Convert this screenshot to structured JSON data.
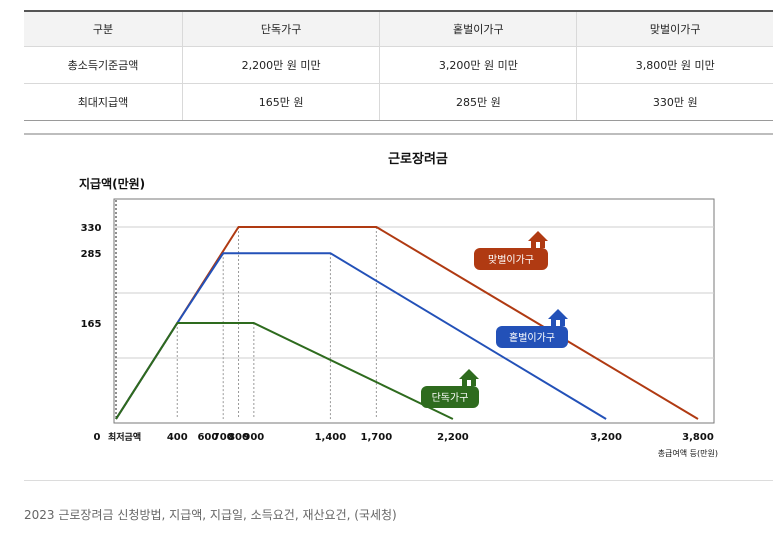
{
  "table": {
    "header": [
      "구분",
      "단독가구",
      "홑벌이가구",
      "맞벌이가구"
    ],
    "rows": [
      [
        "총소득기준금액",
        "2,200만 원 미만",
        "3,200만 원 미만",
        "3,800만 원 미만"
      ],
      [
        "최대지급액",
        "165만 원",
        "285만 원",
        "330만 원"
      ]
    ]
  },
  "chart_data": {
    "type": "line",
    "title": "근로장려금",
    "ylabel": "지급액(만원)",
    "xlabel": "총급여액 등(만원)",
    "x_ticks": [
      {
        "value": 0,
        "label": "0"
      },
      {
        "value": 400,
        "label": "400"
      },
      {
        "value": 600,
        "label": "600"
      },
      {
        "value": 700,
        "label": "700"
      },
      {
        "value": 800,
        "label": "800"
      },
      {
        "value": 900,
        "label": "900"
      },
      {
        "value": 1400,
        "label": "1,400"
      },
      {
        "value": 1700,
        "label": "1,700"
      },
      {
        "value": 2200,
        "label": "2,200"
      },
      {
        "value": 3200,
        "label": "3,200"
      },
      {
        "value": 3800,
        "label": "3,800"
      }
    ],
    "min_wage_label": "최저금액",
    "y_ticks": [
      165,
      285,
      330
    ],
    "xlim": [
      0,
      3800
    ],
    "ylim": [
      0,
      330
    ],
    "series": [
      {
        "name": "맞벌이가구",
        "color": "#b03a12",
        "x": [
          0,
          400,
          800,
          1700,
          3800
        ],
        "y": [
          0,
          165,
          330,
          330,
          0
        ]
      },
      {
        "name": "홑벌이가구",
        "color": "#2351b8",
        "x": [
          0,
          400,
          700,
          1400,
          3200
        ],
        "y": [
          0,
          165,
          285,
          285,
          0
        ]
      },
      {
        "name": "단독가구",
        "color": "#2e6b1e",
        "x": [
          0,
          400,
          900,
          2200
        ],
        "y": [
          0,
          165,
          165,
          0
        ]
      }
    ],
    "grid": true,
    "legend": "inline labels with house icons"
  },
  "caption": "2023 근로장려금 신청방법, 지급액, 지급일, 소득요건, 재산요건, (국세청)"
}
